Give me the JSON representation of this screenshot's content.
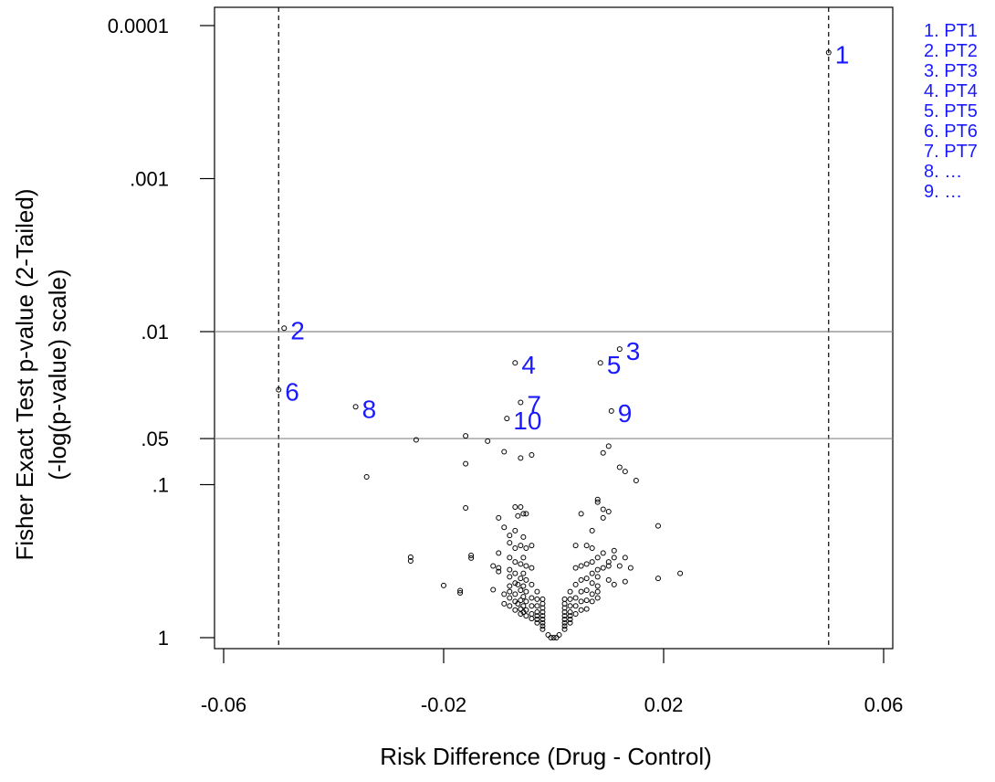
{
  "chart_data": {
    "type": "scatter",
    "title": "",
    "xlabel": "Risk Difference (Drug - Control)",
    "ylabel_lines": [
      "Fisher Exact Test p-value (2-Tailed)",
      "(-log(p-value) scale)"
    ],
    "x_scale": "linear",
    "y_scale": "-log10",
    "xlim": [
      -0.062,
      0.062
    ],
    "ylim_p": [
      1.0,
      6e-05
    ],
    "x_ticks": [
      {
        "value": -0.06,
        "label": "-0.06"
      },
      {
        "value": -0.02,
        "label": "-0.02"
      },
      {
        "value": 0.02,
        "label": "0.02"
      },
      {
        "value": 0.06,
        "label": "0.06"
      }
    ],
    "y_ticks": [
      {
        "p": 0.0001,
        "label": "0.0001"
      },
      {
        "p": 0.001,
        "label": ".001"
      },
      {
        "p": 0.01,
        "label": ".01"
      },
      {
        "p": 0.05,
        "label": ".05"
      },
      {
        "p": 0.1,
        "label": ".1"
      },
      {
        "p": 1.0,
        "label": "1"
      }
    ],
    "reference_lines": {
      "vertical_dashed_x": [
        -0.05,
        0.05
      ],
      "horizontal_solid_p": [
        0.01,
        0.05
      ]
    },
    "grid": false,
    "accent_color": "#1a1aff",
    "labeled_points": [
      {
        "label": "1",
        "x": 0.05,
        "p": 0.00015
      },
      {
        "label": "2",
        "x": -0.049,
        "p": 0.0095
      },
      {
        "label": "3",
        "x": 0.012,
        "p": 0.013
      },
      {
        "label": "4",
        "x": -0.007,
        "p": 0.016
      },
      {
        "label": "5",
        "x": 0.0085,
        "p": 0.016
      },
      {
        "label": "6",
        "x": -0.05,
        "p": 0.024
      },
      {
        "label": "7",
        "x": -0.006,
        "p": 0.029
      },
      {
        "label": "8",
        "x": -0.036,
        "p": 0.031
      },
      {
        "label": "9",
        "x": 0.0105,
        "p": 0.033
      },
      {
        "label": "10",
        "x": -0.0085,
        "p": 0.037
      }
    ],
    "points": [
      [
        -0.025,
        0.051
      ],
      [
        -0.016,
        0.048
      ],
      [
        -0.012,
        0.052
      ],
      [
        -0.009,
        0.061
      ],
      [
        -0.016,
        0.073
      ],
      [
        -0.006,
        0.067
      ],
      [
        -0.004,
        0.064
      ],
      [
        0.009,
        0.062
      ],
      [
        0.01,
        0.056
      ],
      [
        0.012,
        0.077
      ],
      [
        0.013,
        0.082
      ],
      [
        0.015,
        0.094
      ],
      [
        -0.034,
        0.089
      ],
      [
        -0.026,
        0.298
      ],
      [
        -0.026,
        0.315
      ],
      [
        -0.016,
        0.142
      ],
      [
        -0.015,
        0.29
      ],
      [
        -0.015,
        0.302
      ],
      [
        -0.02,
        0.456
      ],
      [
        -0.017,
        0.493
      ],
      [
        -0.017,
        0.51
      ],
      [
        -0.011,
        0.34
      ],
      [
        -0.011,
        0.486
      ],
      [
        -0.01,
        0.165
      ],
      [
        -0.01,
        0.28
      ],
      [
        -0.01,
        0.35
      ],
      [
        -0.01,
        0.37
      ],
      [
        -0.009,
        0.19
      ],
      [
        -0.009,
        0.52
      ],
      [
        -0.009,
        0.6
      ],
      [
        -0.008,
        0.215
      ],
      [
        -0.008,
        0.24
      ],
      [
        -0.008,
        0.3
      ],
      [
        -0.008,
        0.36
      ],
      [
        -0.008,
        0.4
      ],
      [
        -0.008,
        0.46
      ],
      [
        -0.008,
        0.5
      ],
      [
        -0.008,
        0.55
      ],
      [
        -0.008,
        0.62
      ],
      [
        -0.007,
        0.2
      ],
      [
        -0.007,
        0.26
      ],
      [
        -0.007,
        0.32
      ],
      [
        -0.007,
        0.38
      ],
      [
        -0.007,
        0.44
      ],
      [
        -0.007,
        0.52
      ],
      [
        -0.007,
        0.58
      ],
      [
        -0.007,
        0.66
      ],
      [
        -0.0065,
        0.16
      ],
      [
        -0.0065,
        0.45
      ],
      [
        -0.0065,
        0.6
      ],
      [
        -0.006,
        0.25
      ],
      [
        -0.006,
        0.33
      ],
      [
        -0.006,
        0.41
      ],
      [
        -0.006,
        0.49
      ],
      [
        -0.006,
        0.57
      ],
      [
        -0.006,
        0.65
      ],
      [
        -0.006,
        0.7
      ],
      [
        -0.0055,
        0.155
      ],
      [
        -0.0055,
        0.22
      ],
      [
        -0.0055,
        0.3
      ],
      [
        -0.0055,
        0.38
      ],
      [
        -0.0055,
        0.46
      ],
      [
        -0.0055,
        0.54
      ],
      [
        -0.0055,
        0.62
      ],
      [
        -0.0055,
        0.68
      ],
      [
        -0.005,
        0.155
      ],
      [
        -0.005,
        0.26
      ],
      [
        -0.005,
        0.34
      ],
      [
        -0.005,
        0.42
      ],
      [
        -0.005,
        0.5
      ],
      [
        -0.005,
        0.58
      ],
      [
        -0.005,
        0.66
      ],
      [
        -0.005,
        0.72
      ],
      [
        -0.004,
        0.25
      ],
      [
        -0.004,
        0.35
      ],
      [
        -0.004,
        0.45
      ],
      [
        -0.004,
        0.55
      ],
      [
        -0.004,
        0.62
      ],
      [
        -0.004,
        0.7
      ],
      [
        -0.004,
        0.75
      ],
      [
        -0.003,
        0.5
      ],
      [
        -0.003,
        0.56
      ],
      [
        -0.003,
        0.62
      ],
      [
        -0.003,
        0.68
      ],
      [
        -0.003,
        0.72
      ],
      [
        -0.003,
        0.76
      ],
      [
        -0.003,
        0.8
      ],
      [
        -0.002,
        0.56
      ],
      [
        -0.002,
        0.6
      ],
      [
        -0.002,
        0.64
      ],
      [
        -0.002,
        0.68
      ],
      [
        -0.002,
        0.72
      ],
      [
        -0.002,
        0.76
      ],
      [
        -0.002,
        0.8
      ],
      [
        -0.002,
        0.84
      ],
      [
        -0.002,
        0.88
      ],
      [
        -0.001,
        0.96
      ],
      [
        -0.0005,
        1.0
      ],
      [
        0.0,
        1.0
      ],
      [
        0.0005,
        1.0
      ],
      [
        0.001,
        0.96
      ],
      [
        0.002,
        0.56
      ],
      [
        0.002,
        0.6
      ],
      [
        0.002,
        0.64
      ],
      [
        0.002,
        0.68
      ],
      [
        0.002,
        0.72
      ],
      [
        0.002,
        0.76
      ],
      [
        0.002,
        0.8
      ],
      [
        0.002,
        0.84
      ],
      [
        0.002,
        0.88
      ],
      [
        0.003,
        0.5
      ],
      [
        0.003,
        0.56
      ],
      [
        0.003,
        0.62
      ],
      [
        0.003,
        0.68
      ],
      [
        0.003,
        0.72
      ],
      [
        0.003,
        0.76
      ],
      [
        0.003,
        0.8
      ],
      [
        0.004,
        0.25
      ],
      [
        0.004,
        0.35
      ],
      [
        0.004,
        0.45
      ],
      [
        0.004,
        0.55
      ],
      [
        0.004,
        0.62
      ],
      [
        0.004,
        0.7
      ],
      [
        0.005,
        0.155
      ],
      [
        0.005,
        0.34
      ],
      [
        0.005,
        0.42
      ],
      [
        0.005,
        0.5
      ],
      [
        0.005,
        0.58
      ],
      [
        0.005,
        0.66
      ],
      [
        0.006,
        0.25
      ],
      [
        0.006,
        0.33
      ],
      [
        0.006,
        0.41
      ],
      [
        0.006,
        0.49
      ],
      [
        0.006,
        0.57
      ],
      [
        0.006,
        0.65
      ],
      [
        0.007,
        0.2
      ],
      [
        0.007,
        0.26
      ],
      [
        0.007,
        0.32
      ],
      [
        0.007,
        0.38
      ],
      [
        0.007,
        0.44
      ],
      [
        0.007,
        0.52
      ],
      [
        0.007,
        0.58
      ],
      [
        0.008,
        0.13
      ],
      [
        0.008,
        0.3
      ],
      [
        0.008,
        0.36
      ],
      [
        0.008,
        0.4
      ],
      [
        0.008,
        0.46
      ],
      [
        0.008,
        0.5
      ],
      [
        0.008,
        0.55
      ],
      [
        0.009,
        0.165
      ],
      [
        0.009,
        0.28
      ],
      [
        0.009,
        0.35
      ],
      [
        0.01,
        0.15
      ],
      [
        0.01,
        0.34
      ],
      [
        0.01,
        0.42
      ],
      [
        0.011,
        0.27
      ],
      [
        0.011,
        0.3
      ],
      [
        0.011,
        0.45
      ],
      [
        0.012,
        0.34
      ],
      [
        0.013,
        0.3
      ],
      [
        0.013,
        0.43
      ],
      [
        0.014,
        0.35
      ],
      [
        0.019,
        0.186
      ],
      [
        0.019,
        0.41
      ],
      [
        0.023,
        0.38
      ],
      [
        0.009,
        0.145
      ],
      [
        0.01,
        0.32
      ],
      [
        -0.007,
        0.14
      ],
      [
        -0.006,
        0.14
      ],
      [
        0.008,
        0.125
      ]
    ],
    "legend_entries": [
      "1. PT1",
      "2. PT2",
      "3. PT3",
      "4. PT4",
      "5. PT5",
      "6. PT6",
      "7. PT7",
      "8.  …",
      "9.  …"
    ]
  }
}
